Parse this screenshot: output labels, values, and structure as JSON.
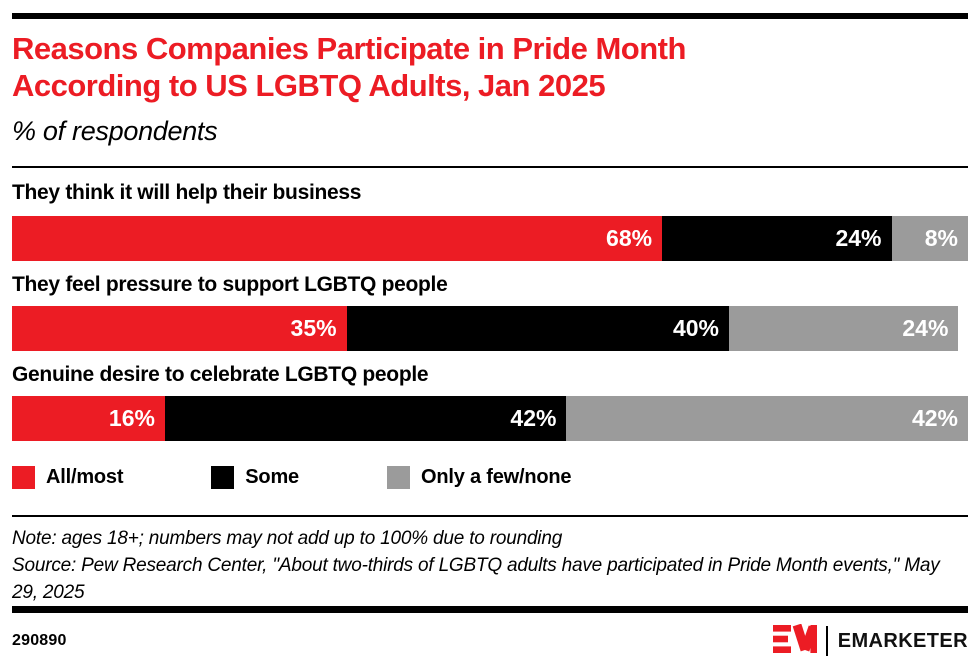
{
  "page": {
    "background": "#ffffff"
  },
  "colors": {
    "accent_red": "#EC1C24",
    "black": "#000000",
    "gray": "#9B9B9B"
  },
  "header": {
    "title_lines": [
      "Reasons Companies Participate in Pride Month",
      "According to US LGBTQ Adults, Jan 2025"
    ],
    "subtitle": "% of respondents"
  },
  "chart_data": {
    "type": "bar",
    "orientation": "horizontal-stacked",
    "title": "Reasons Companies Participate in Pride Month According to US LGBTQ Adults, Jan 2025",
    "subtitle": "% of respondents",
    "units": "%",
    "xlim": [
      0,
      100
    ],
    "legend_position": "bottom",
    "categories": [
      "They think it will help their business",
      "They feel pressure to support LGBTQ people",
      "Genuine desire to celebrate LGBTQ people"
    ],
    "series": [
      {
        "name": "All/most",
        "color": "#EC1C24",
        "values": [
          68,
          35,
          16
        ]
      },
      {
        "name": "Some",
        "color": "#000000",
        "values": [
          24,
          40,
          42
        ]
      },
      {
        "name": "Only a few/none",
        "color": "#9B9B9B",
        "values": [
          8,
          24,
          42
        ]
      }
    ],
    "value_label_format": "{value}%"
  },
  "notes": {
    "note": "Note: ages 18+; numbers may not add up to 100% due to rounding",
    "source": "Source: Pew Research Center, \"About two-thirds of LGBTQ adults have participated in Pride Month events,\" May 29, 2025"
  },
  "footer": {
    "chart_id": "290890",
    "brand": "EMARKETER"
  }
}
